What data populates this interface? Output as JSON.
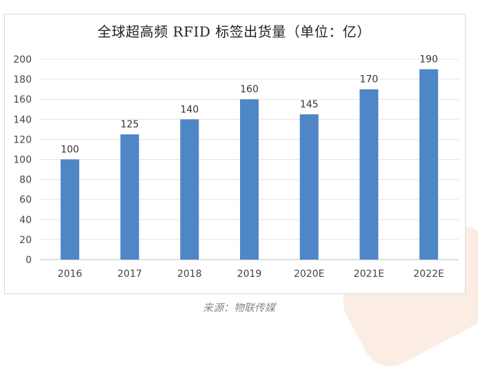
{
  "chart_data": {
    "type": "bar",
    "title": "全球超高频 RFID 标签出货量（单位：亿）",
    "categories": [
      "2016",
      "2017",
      "2018",
      "2019",
      "2020E",
      "2021E",
      "2022E"
    ],
    "values": [
      100,
      125,
      140,
      160,
      145,
      170,
      190
    ],
    "ylim": [
      0,
      200
    ],
    "yticks": [
      0,
      20,
      40,
      60,
      80,
      100,
      120,
      140,
      160,
      180,
      200
    ],
    "grid": true,
    "bar_color": "#4f86c6",
    "show_data_labels": true
  },
  "source": "来源：物联传媒"
}
